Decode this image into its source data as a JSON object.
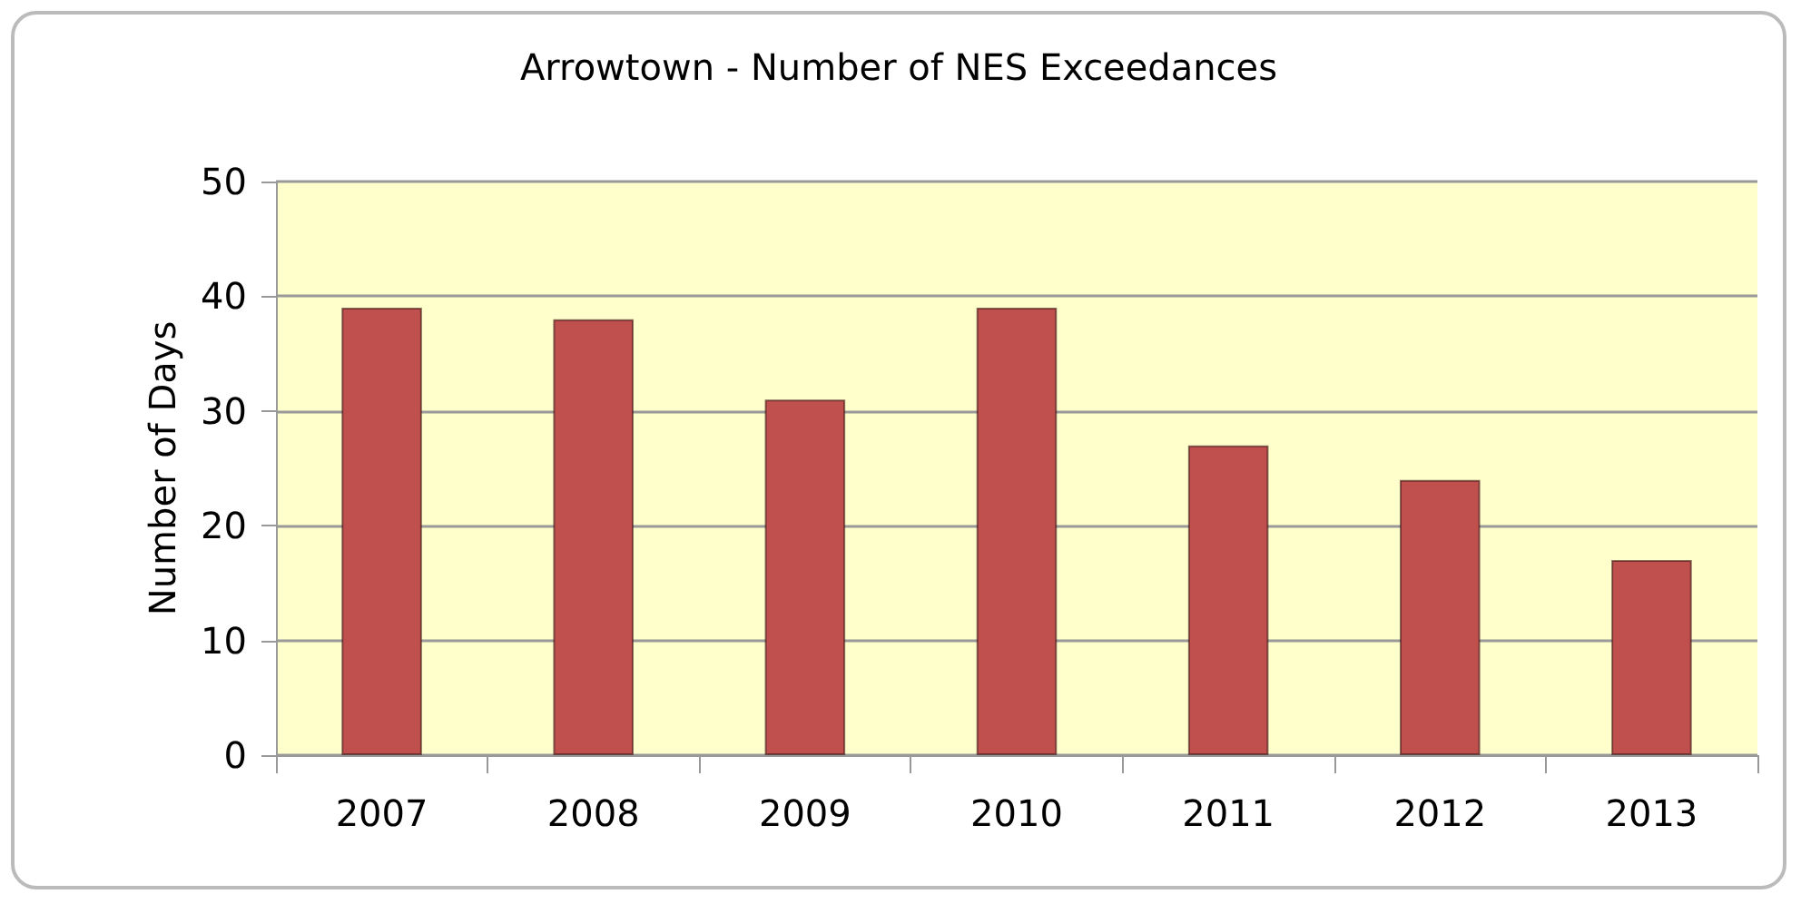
{
  "chart_data": {
    "type": "bar",
    "title": "Arrowtown - Number of NES Exceedances",
    "ylabel": "Number of Days",
    "categories": [
      "2007",
      "2008",
      "2009",
      "2010",
      "2011",
      "2012",
      "2013"
    ],
    "values": [
      39,
      38,
      31,
      39,
      27,
      24,
      17
    ],
    "color": "#c0504d",
    "ylim": [
      0,
      50
    ],
    "yticks": [
      0,
      10,
      20,
      30,
      40,
      50
    ],
    "grid": "y"
  }
}
